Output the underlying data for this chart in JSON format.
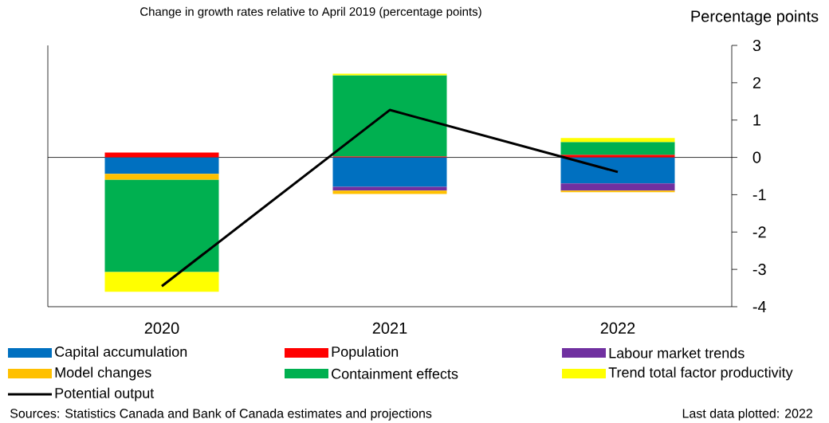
{
  "chart_data": {
    "type": "bar",
    "stacked": true,
    "title": "Change in growth rates relative to April 2019 (percentage points)",
    "ylabel": "Percentage points",
    "categories": [
      "2020",
      "2021",
      "2022"
    ],
    "series": [
      {
        "name": "Capital accumulation",
        "color": "#0070c0",
        "values": [
          -0.44,
          -0.79,
          -0.7
        ]
      },
      {
        "name": "Population",
        "color": "#ff0000",
        "values": [
          0.13,
          0.03,
          0.07
        ]
      },
      {
        "name": "Labour market trends",
        "color": "#7030a0",
        "values": [
          0,
          -0.1,
          -0.19
        ]
      },
      {
        "name": "Model changes",
        "color": "#ffc000",
        "values": [
          -0.16,
          -0.09,
          -0.04
        ]
      },
      {
        "name": "Containment effects",
        "color": "#00b050",
        "values": [
          -2.47,
          2.17,
          0.34
        ]
      },
      {
        "name": "Trend total factor productivity",
        "color": "#ffff00",
        "values": [
          -0.53,
          0.04,
          0.11
        ]
      },
      {
        "name": "Potential output",
        "type": "line",
        "color": "#000000",
        "values": [
          -3.45,
          1.27,
          -0.39
        ]
      }
    ],
    "ylim": [
      -4,
      3
    ],
    "yticks": [
      -4,
      -3,
      -2,
      -1,
      0,
      1,
      2,
      3
    ],
    "ref_lines": [
      {
        "axis": "y",
        "value": 0,
        "color": "#000000"
      }
    ],
    "legend": "bottom",
    "grid": false,
    "annotations": [
      "Sources: Statistics Canada and Bank of Canada estimates and projections",
      "Last data plotted: 2022"
    ]
  }
}
